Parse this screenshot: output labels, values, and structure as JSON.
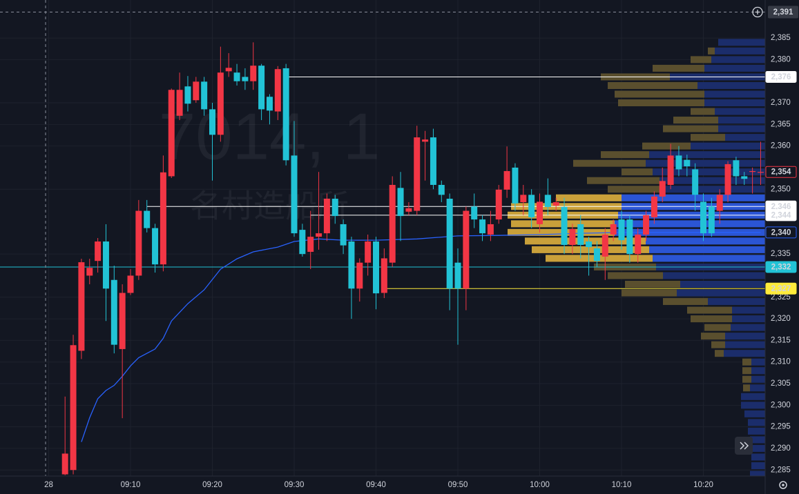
{
  "chart_data": {
    "type": "candlestick",
    "watermark": {
      "symbol": "7014, 1",
      "name": "名村造船所"
    },
    "up_color": "#f23645",
    "down_color": "#22c3d6",
    "x": [
      "09:02",
      "09:03",
      "09:04",
      "09:05",
      "09:06",
      "09:07",
      "09:08",
      "09:09",
      "09:10",
      "09:11",
      "09:12",
      "09:13",
      "09:14",
      "09:15",
      "09:16",
      "09:17",
      "09:18",
      "09:19",
      "09:20",
      "09:21",
      "09:22",
      "09:23",
      "09:24",
      "09:25",
      "09:26",
      "09:27",
      "09:28",
      "09:29",
      "09:30",
      "09:31",
      "09:32",
      "09:33",
      "09:34",
      "09:35",
      "09:36",
      "09:37",
      "09:38",
      "09:39",
      "09:40",
      "09:41",
      "09:42",
      "09:43",
      "09:44",
      "09:45",
      "09:46",
      "09:47",
      "09:48",
      "09:49",
      "09:50",
      "09:51",
      "09:52",
      "09:53",
      "09:54",
      "09:55",
      "09:56",
      "09:57",
      "09:58",
      "09:59",
      "10:00",
      "10:01",
      "10:02",
      "10:03",
      "10:04",
      "10:05",
      "10:06",
      "10:07",
      "10:08",
      "10:09",
      "10:10",
      "10:11",
      "10:12",
      "10:13",
      "10:14",
      "10:15",
      "10:16",
      "10:17",
      "10:18",
      "10:19",
      "10:20",
      "10:21",
      "10:22",
      "10:23",
      "10:24",
      "10:25",
      "10:26",
      "10:27"
    ],
    "open": [
      2284,
      2285,
      2312.6,
      2330,
      2333.4,
      2337.9,
      2329,
      2313,
      2326,
      2330,
      2345,
      2341,
      2332.6,
      2353,
      2367,
      2373.8,
      2370.6,
      2374.9,
      2368.5,
      2362.6,
      2377.3,
      2377,
      2376,
      2375,
      2378.6,
      2371.4,
      2368,
      2378,
      2357.8,
      2340.6,
      2335.5,
      2339,
      2339.8,
      2347.8,
      2341.9,
      2337.9,
      2327,
      2333,
      2337.9,
      2326,
      2333,
      2350.3,
      2344.8,
      2345,
      2361,
      2362,
      2351,
      2347.8,
      2333,
      2327,
      2346,
      2343,
      2339.5,
      2343,
      2349.9,
      2355,
      2347,
      2348.7,
      2341.9,
      2348.7,
      2346.2,
      2345.9,
      2337.1,
      2341.9,
      2337.9,
      2336.3,
      2334.4,
      2339.5,
      2343,
      2343,
      2335,
      2339.5,
      2343.5,
      2348.3,
      2351,
      2357.8,
      2356.8,
      2354.6,
      2347.1,
      2346,
      2345,
      2348.7,
      2356.7,
      2353,
      2354,
      2354
    ],
    "high": [
      2302,
      2316.3,
      2333.9,
      2333.9,
      2338.7,
      2341.9,
      2332.3,
      2328,
      2331.5,
      2347.5,
      2347.5,
      2342,
      2357.8,
      2373.3,
      2377,
      2376.2,
      2376,
      2376,
      2370,
      2383,
      2381.5,
      2379,
      2378,
      2384,
      2379,
      2372,
      2378.5,
      2379,
      2365.8,
      2342,
      2345,
      2354,
      2349,
      2348.7,
      2343,
      2339,
      2334,
      2339.5,
      2339,
      2336.3,
      2353,
      2354,
      2347,
      2364.7,
      2363.5,
      2364,
      2352,
      2349,
      2336.3,
      2346,
      2349,
      2344,
      2345,
      2351,
      2359.9,
      2356,
      2351,
      2350,
      2349,
      2352.5,
      2348,
      2348,
      2342,
      2344,
      2339,
      2338,
      2341,
      2343,
      2345,
      2344,
      2341,
      2345,
      2349.5,
      2355,
      2360.5,
      2360,
      2358,
      2356,
      2349,
      2348,
      2350,
      2356.5,
      2357.5,
      2354,
      2355,
      2361
    ],
    "low": [
      2283.8,
      2284,
      2310.7,
      2328,
      2330.7,
      2319.5,
      2312,
      2297,
      2325.5,
      2329,
      2340,
      2330.7,
      2331,
      2352.6,
      2366,
      2368,
      2370,
      2367,
      2352,
      2361,
      2376,
      2374,
      2373,
      2373,
      2366,
      2365,
      2366,
      2355.5,
      2339,
      2334.4,
      2331.5,
      2336,
      2338,
      2342,
      2335,
      2320,
      2324,
      2330,
      2322.2,
      2324.8,
      2332,
      2338,
      2344,
      2344,
      2352,
      2350,
      2347,
      2322,
      2314,
      2322,
      2341,
      2338,
      2338,
      2342,
      2348,
      2345,
      2344,
      2341,
      2340,
      2344,
      2345,
      2335,
      2335,
      2334,
      2330,
      2332,
      2329,
      2338,
      2336,
      2333,
      2333,
      2338,
      2342,
      2347,
      2350,
      2353,
      2353,
      2345,
      2338,
      2339,
      2342,
      2347,
      2351,
      2351,
      2349,
      2351
    ],
    "close": [
      2288.8,
      2313.9,
      2333.1,
      2331.8,
      2337.9,
      2327,
      2314,
      2326,
      2330,
      2345,
      2341,
      2332.6,
      2353.9,
      2373,
      2373,
      2369.8,
      2374.9,
      2368.5,
      2362.6,
      2377,
      2378.1,
      2375,
      2375,
      2378.6,
      2368.5,
      2368.2,
      2377.8,
      2356.7,
      2339.8,
      2335,
      2339,
      2339.8,
      2347.8,
      2343.8,
      2337,
      2327,
      2333,
      2337.9,
      2325.9,
      2334,
      2351,
      2343.8,
      2345.6,
      2362,
      2361.5,
      2351,
      2348.7,
      2327,
      2327,
      2345,
      2343,
      2339.8,
      2341.9,
      2349.9,
      2354.2,
      2346.7,
      2348.7,
      2343.5,
      2347.1,
      2345.9,
      2347,
      2337.1,
      2340.8,
      2337.1,
      2336.6,
      2333.4,
      2339.5,
      2341.9,
      2338.2,
      2335,
      2339.5,
      2344,
      2348.3,
      2351.9,
      2357.8,
      2354.6,
      2355.3,
      2348.7,
      2339.8,
      2339.8,
      2348.7,
      2355.8,
      2353,
      2352.4,
      2354.2,
      2354
    ],
    "line": {
      "color": "#2962ff",
      "x": [
        "09:04",
        "09:05",
        "09:06",
        "09:07",
        "09:08",
        "09:09",
        "09:10",
        "09:11",
        "09:13",
        "09:14",
        "09:15",
        "09:17",
        "09:19",
        "09:21",
        "09:23",
        "09:25",
        "09:28",
        "09:30",
        "09:33",
        "09:36",
        "09:40",
        "09:45",
        "09:50",
        "09:55",
        "10:00",
        "10:05",
        "10:10",
        "10:27"
      ],
      "values": [
        2291.5,
        2297.1,
        2301.5,
        2303.4,
        2304.6,
        2306.7,
        2309.1,
        2311,
        2313,
        2315.5,
        2319.5,
        2323.5,
        2326.7,
        2331.5,
        2333.9,
        2335.5,
        2336.6,
        2337.9,
        2338.5,
        2338.2,
        2338.2,
        2338.5,
        2339.2,
        2339.3,
        2339.5,
        2339.8,
        2340,
        2340
      ]
    },
    "volume_profile": {
      "prices": [
        2384,
        2382,
        2380,
        2378,
        2376,
        2374,
        2372,
        2370,
        2368,
        2366,
        2364,
        2362,
        2360,
        2358,
        2356,
        2354,
        2352,
        2350,
        2348,
        2346,
        2344,
        2342,
        2340,
        2338,
        2336,
        2334,
        2332,
        2330,
        2328,
        2326,
        2324,
        2322,
        2320,
        2318,
        2316,
        2314,
        2312,
        2310,
        2308,
        2306,
        2304,
        2302,
        2300,
        2298,
        2296,
        2294,
        2292,
        2290,
        2288,
        2286,
        2284
      ],
      "blue": [
        68,
        73,
        78,
        88,
        138,
        98,
        88,
        88,
        73,
        68,
        68,
        58,
        108,
        168,
        173,
        163,
        153,
        153,
        208,
        208,
        213,
        218,
        218,
        173,
        168,
        163,
        158,
        148,
        123,
        128,
        83,
        48,
        48,
        50,
        58,
        58,
        60,
        20,
        20,
        20,
        22,
        35,
        35,
        30,
        25,
        25,
        22,
        20,
        20,
        20,
        22
      ],
      "olive": [
        0,
        10,
        30,
        75,
        100,
        130,
        130,
        125,
        35,
        65,
        80,
        50,
        70,
        70,
        105,
        45,
        105,
        75,
        95,
        160,
        160,
        150,
        155,
        175,
        170,
        155,
        90,
        80,
        80,
        80,
        65,
        65,
        60,
        38,
        35,
        20,
        13,
        13,
        13,
        13,
        10,
        0,
        0,
        0,
        0,
        0,
        0,
        0,
        0,
        0,
        0
      ],
      "value_area": [
        2334,
        2348
      ],
      "colors": {
        "blue": "#1b2d6b",
        "blue_va": "#2b55d4",
        "olive": "#5a4f2e",
        "olive_va": "#c9a03a"
      }
    },
    "price_lines": [
      {
        "value": 2376,
        "label": "2,376",
        "color": "#ffffff",
        "text_color": "#131722",
        "from": "09:29"
      },
      {
        "value": 2354,
        "label": "2,354",
        "color": "#f23645",
        "outline": true
      },
      {
        "value": 2346,
        "label": "2,346",
        "color": "#ffffff",
        "text_color": "#131722",
        "from": "09:12"
      },
      {
        "value": 2344,
        "label": "2,344",
        "color": "#ffffff",
        "text_color": "#131722",
        "from": "09:32"
      },
      {
        "value": 2340,
        "label": "2,340",
        "color": "#2962ff",
        "outline": true
      },
      {
        "value": 2332,
        "label": "2,332",
        "color": "#22c3d6",
        "text_color": "#131722",
        "from": "08:54"
      },
      {
        "value": 2327,
        "label": "2,327",
        "color": "#ffeb3b",
        "text_color": "#131722",
        "from": "09:41"
      }
    ],
    "crosshair": {
      "value": 2391,
      "label": "2,391"
    },
    "ylim": [
      2283.6,
      2393.8
    ],
    "yticks": [
      {
        "value": 2385,
        "label": "2,385"
      },
      {
        "value": 2380,
        "label": "2,380"
      },
      {
        "value": 2370,
        "label": "2,370"
      },
      {
        "value": 2365,
        "label": "2,365"
      },
      {
        "value": 2360,
        "label": "2,360"
      },
      {
        "value": 2350,
        "label": "2,350"
      },
      {
        "value": 2335,
        "label": "2,335"
      },
      {
        "value": 2325,
        "label": "2,325"
      },
      {
        "value": 2320,
        "label": "2,320"
      },
      {
        "value": 2315,
        "label": "2,315"
      },
      {
        "value": 2310,
        "label": "2,310"
      },
      {
        "value": 2305,
        "label": "2,305"
      },
      {
        "value": 2300,
        "label": "2,300"
      },
      {
        "value": 2295,
        "label": "2,295"
      },
      {
        "value": 2290,
        "label": "2,290"
      },
      {
        "value": 2285,
        "label": "2,285"
      }
    ],
    "xticks": [
      {
        "value": "09:00",
        "label": "28"
      },
      "09:10",
      "09:20",
      "09:30",
      "09:40",
      "09:50",
      "10:00",
      "10:10",
      "10:20"
    ],
    "grid": true
  }
}
